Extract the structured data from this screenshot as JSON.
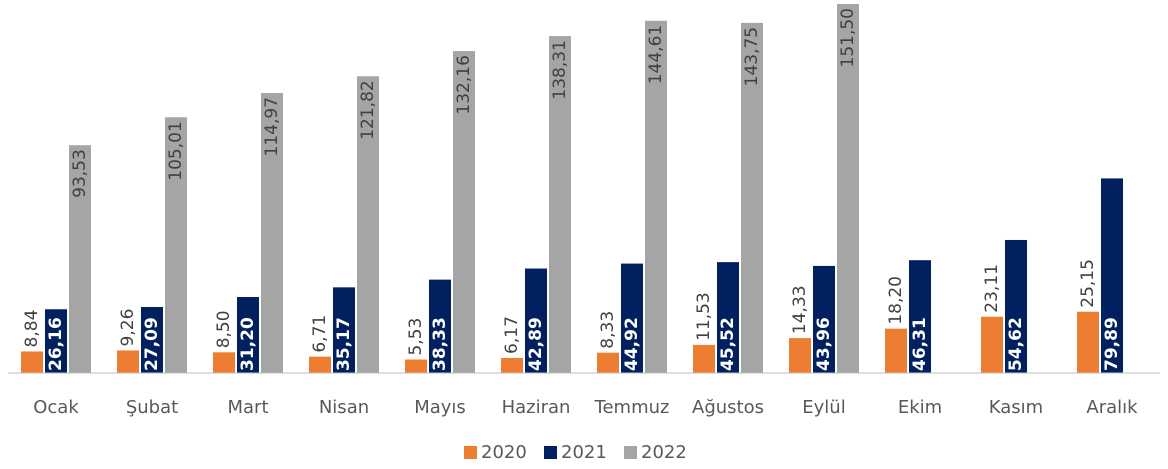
{
  "chart_data": {
    "type": "bar",
    "categories": [
      "Ocak",
      "Şubat",
      "Mart",
      "Nisan",
      "Mayıs",
      "Haziran",
      "Temmuz",
      "Ağustos",
      "Eylül",
      "Ekim",
      "Kasım",
      "Aralık"
    ],
    "series": [
      {
        "name": "2020",
        "color": "#ed7d31",
        "values": [
          8.84,
          9.26,
          8.5,
          6.71,
          5.53,
          6.17,
          8.33,
          11.53,
          14.33,
          18.2,
          23.11,
          25.15
        ],
        "value_labels": [
          "8,84",
          "9,26",
          "8,50",
          "6,71",
          "5,53",
          "6,17",
          "8,33",
          "11,53",
          "14,33",
          "18,20",
          "23,11",
          "25,15"
        ]
      },
      {
        "name": "2021",
        "color": "#002060",
        "values": [
          26.16,
          27.09,
          31.2,
          35.17,
          38.33,
          42.89,
          44.92,
          45.52,
          43.96,
          46.31,
          54.62,
          79.89
        ],
        "value_labels": [
          "26,16",
          "27,09",
          "31,20",
          "35,17",
          "38,33",
          "42,89",
          "44,92",
          "45,52",
          "43,96",
          "46,31",
          "54,62",
          "79,89"
        ]
      },
      {
        "name": "2022",
        "color": "#a5a5a5",
        "values": [
          93.53,
          105.01,
          114.97,
          121.82,
          132.16,
          138.31,
          144.61,
          143.75,
          151.5,
          null,
          null,
          null
        ],
        "value_labels": [
          "93,53",
          "105,01",
          "114,97",
          "121,82",
          "132,16",
          "138,31",
          "144,61",
          "143,75",
          "151,50",
          null,
          null,
          null
        ]
      }
    ],
    "legend": "bottom"
  }
}
